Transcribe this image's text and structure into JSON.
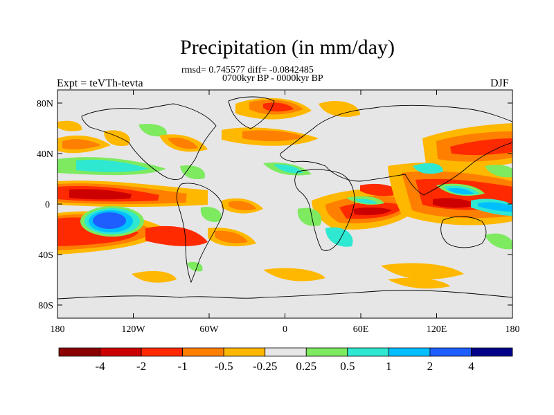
{
  "title": "Precipitation (in mm/day)",
  "stats_line": "rmsd= 0.745577 diff= -0.0842485",
  "period": "0700kyr BP - 0000kyr BP",
  "experiment": "Expt = teVTh-tevta",
  "season": "DJF",
  "axes": {
    "y_ticks": [
      "80N",
      "40N",
      "0",
      "40S",
      "80S"
    ],
    "x_ticks": [
      "180",
      "120W",
      "60W",
      "0",
      "60E",
      "120E",
      "180"
    ]
  },
  "colorbar": {
    "colors": [
      "#8b0000",
      "#cc0000",
      "#ff2a00",
      "#ff7f00",
      "#ffb800",
      "#e6e6e6",
      "#7dea5f",
      "#2ee8d2",
      "#00bfff",
      "#1e5eff",
      "#00008b"
    ],
    "labels": [
      "-4",
      "-2",
      "-1",
      "-0.5",
      "-0.25",
      "0.25",
      "0.5",
      "1",
      "2",
      "4"
    ]
  },
  "map": {
    "background": "#e6e6e6",
    "land_outline_color": "#000000"
  }
}
